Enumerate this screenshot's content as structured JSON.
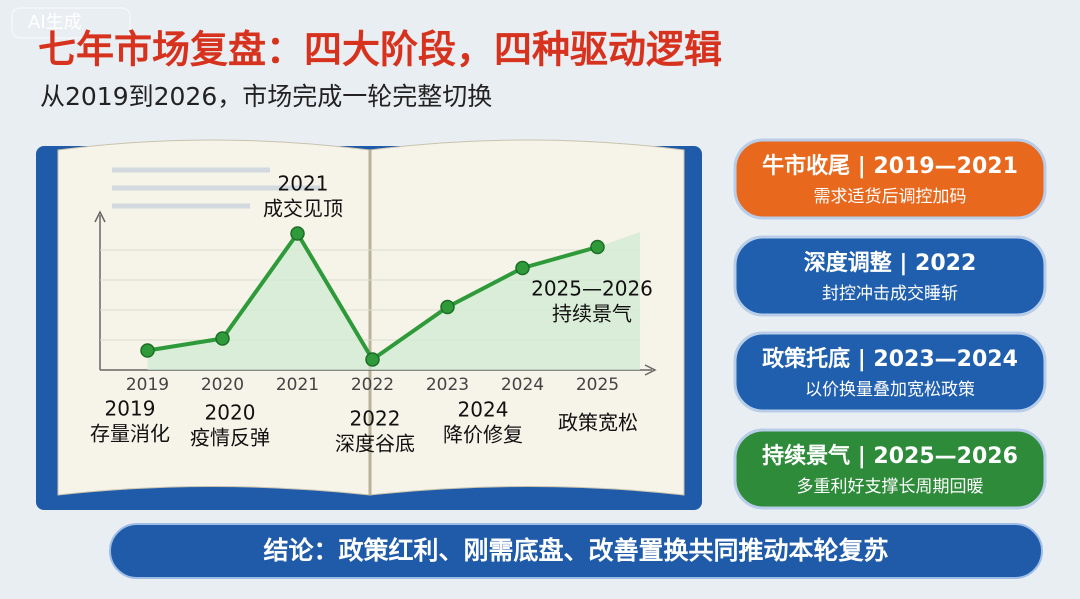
{
  "watermark": "AI生成",
  "header": {
    "title": "七年市场复盘：四大阶段，四种驱动逻辑",
    "subtitle": "从2019到2026，市场完成一轮完整切换"
  },
  "chart_data": {
    "type": "line",
    "categories": [
      "2019",
      "2020",
      "2021",
      "2022",
      "2023",
      "2024",
      "2025"
    ],
    "values": [
      13,
      21,
      91,
      7,
      42,
      68,
      82
    ],
    "color": "#2e9a3a",
    "ylim": [
      0,
      100
    ],
    "annotations": [
      {
        "lines": [
          "2021",
          "成交见顶"
        ]
      },
      {
        "lines": [
          "2025—2026",
          "持续景气"
        ]
      },
      {
        "lines": [
          "2019",
          "存量消化"
        ]
      },
      {
        "lines": [
          "2020",
          "疫情反弹"
        ]
      },
      {
        "lines": [
          "2022",
          "深度谷底"
        ]
      },
      {
        "lines": [
          "2024",
          "降价修复"
        ]
      },
      {
        "lines": [
          "政策宽松"
        ]
      }
    ]
  },
  "phases": [
    {
      "title": "牛市收尾 | 2019—2021",
      "text": "需求适货后调控加码"
    },
    {
      "title": "深度调整 | 2022",
      "text": "封控冲击成交睡斩"
    },
    {
      "title": "政策托底 | 2023—2024",
      "text": "以价换量叠加宽松政策"
    },
    {
      "title": "持续景气 | 2025—2026",
      "text": "多重利好支撑长周期回暖"
    }
  ],
  "conclusion": "结论：政策红利、刚需底盘、改善置换共同推动本轮复苏"
}
